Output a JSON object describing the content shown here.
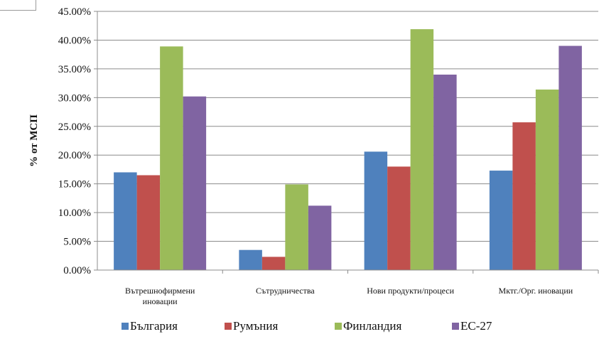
{
  "chart_data": {
    "type": "bar",
    "title": "",
    "xlabel": "",
    "ylabel": "% от МСП",
    "ylim": [
      0,
      0.45
    ],
    "ytick_step": 0.05,
    "ytick_labels": [
      "0.00%",
      "5.00%",
      "10.00%",
      "15.00%",
      "20.00%",
      "25.00%",
      "30.00%",
      "35.00%",
      "40.00%",
      "45.00%"
    ],
    "categories": [
      [
        "Вътрешнофирмени",
        "иновации"
      ],
      [
        "Сътрудничества"
      ],
      [
        "Нови продукти/процеси"
      ],
      [
        "Мктг./Орг. иновации"
      ]
    ],
    "series": [
      {
        "name": "България",
        "color": "#4f81bd",
        "values": [
          0.17,
          0.035,
          0.206,
          0.173
        ]
      },
      {
        "name": "Румъния",
        "color": "#c0504d",
        "values": [
          0.165,
          0.023,
          0.18,
          0.257
        ]
      },
      {
        "name": "Финландия",
        "color": "#9bbb59",
        "values": [
          0.389,
          0.149,
          0.419,
          0.314
        ]
      },
      {
        "name": "ЕС-27",
        "color": "#8064a2",
        "values": [
          0.302,
          0.112,
          0.34,
          0.39
        ]
      }
    ],
    "grid": true,
    "legend_position": "bottom"
  }
}
